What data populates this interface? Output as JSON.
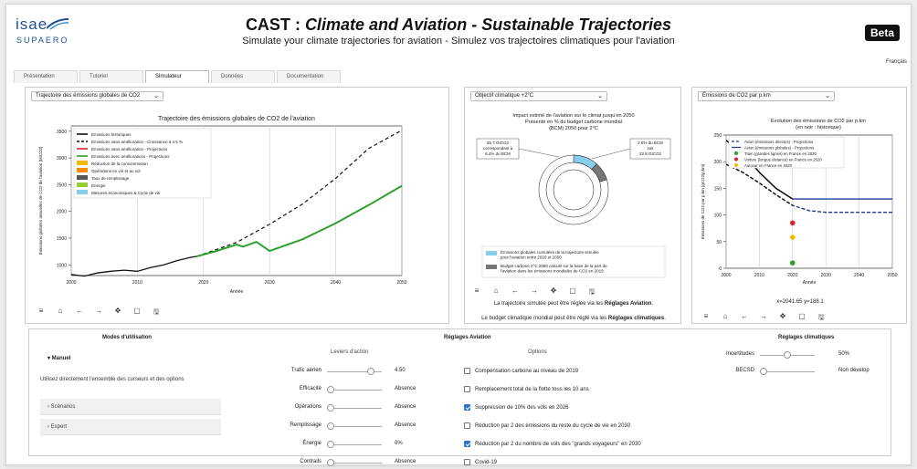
{
  "header": {
    "logo_top": "isae",
    "logo_bottom": "SUPAERO",
    "title_main": "CAST : ",
    "title_italic": "Climate and Aviation - Sustainable Trajectories",
    "subtitle": "Simulate your climate trajectories for aviation - Simulez vos trajectoires climatiques pour l'aviation",
    "beta": "Beta",
    "language": "Français"
  },
  "tabs": [
    {
      "label": "Présentation",
      "active": false
    },
    {
      "label": "Tutoriel",
      "active": false
    },
    {
      "label": "Simulateur",
      "active": true
    },
    {
      "label": "Données",
      "active": false
    },
    {
      "label": "Documentation",
      "active": false
    }
  ],
  "toolbar_icons": [
    "menu-icon",
    "home-icon",
    "back-arrow-icon",
    "forward-arrow-icon",
    "pan-icon",
    "zoom-rect-icon",
    "save-icon"
  ],
  "toolbar_glyphs": [
    "≡",
    "⌂",
    "←",
    "→",
    "✥",
    "▢",
    "🖫"
  ],
  "chart1": {
    "select": "Trajectoire des émissions globales de CO2",
    "legend": [
      {
        "label": "Émissions historiques",
        "color": "#111111",
        "style": "solid"
      },
      {
        "label": "Émissions sans amélioration - Croissance à 4.5 %",
        "color": "#111111",
        "style": "dashed"
      },
      {
        "label": "Émissions sans amélioration - Projections",
        "color": "#d62728",
        "style": "solid"
      },
      {
        "label": "Émissions avec améliorations - Projections",
        "color": "#2ca02c",
        "style": "solid"
      },
      {
        "label": "Réduction de la consommation",
        "color": "#f5b800",
        "style": "patch"
      },
      {
        "label": "Opérations en vol et au sol",
        "color": "#ff8c00",
        "style": "patch"
      },
      {
        "label": "Taux de remplissage",
        "color": "#555555",
        "style": "patch"
      },
      {
        "label": "Énergie",
        "color": "#9acd32",
        "style": "patch"
      },
      {
        "label": "Mesures économiques & Cycle de vie",
        "color": "#87ceeb",
        "style": "patch"
      }
    ],
    "xlabel": "Année",
    "ylabel": "Émissions globales annuelles de CO2 de l'aviation [MtCO2]",
    "yticks": [
      "3500",
      "3000",
      "2500",
      "2000",
      "1500",
      "1000"
    ],
    "xticks": [
      "2000",
      "2010",
      "2020",
      "2030",
      "2040",
      "2050"
    ]
  },
  "chart_data": [
    {
      "type": "line",
      "title": "Trajectoire des émissions globales de CO2 de l'aviation",
      "xlabel": "Année",
      "ylabel": "Émissions globales annuelles de CO2 de l'aviation [MtCO2]",
      "xlim": [
        2000,
        2050
      ],
      "ylim": [
        800,
        3600
      ],
      "series": [
        {
          "name": "Émissions historiques",
          "x": [
            2000,
            2002,
            2004,
            2006,
            2008,
            2010,
            2012,
            2014,
            2016,
            2018,
            2019
          ],
          "values": [
            820,
            790,
            850,
            880,
            900,
            880,
            950,
            1000,
            1080,
            1140,
            1160
          ]
        },
        {
          "name": "Émissions sans amélioration - Croissance à 4.5 %",
          "x": [
            2019,
            2025,
            2030,
            2035,
            2040,
            2045,
            2050
          ],
          "values": [
            1160,
            1420,
            1760,
            2140,
            2620,
            3180,
            3520
          ]
        },
        {
          "name": "Émissions avec améliorations - Projections",
          "x": [
            2019,
            2022,
            2025,
            2026,
            2028,
            2030,
            2035,
            2040,
            2045,
            2050
          ],
          "values": [
            1160,
            1260,
            1380,
            1340,
            1430,
            1260,
            1480,
            1780,
            2120,
            2480
          ]
        }
      ]
    },
    {
      "type": "pie",
      "title": "Impact estimé de l'aviation sur le climat jusqu'en 2050\nPrésenté en % du budget carbone mondial\n(BCM) 2050 pour 2°C",
      "annotations": [
        "55.7 GtCO2\ncorrespondant à\n6.4% du BCM",
        "2.6% du BCM\nsoit\n22.8 GtCO2"
      ],
      "slices": [
        {
          "name": "Aviation",
          "value": 6.4
        },
        {
          "name": "Reste",
          "value": 93.6
        }
      ],
      "legend": [
        {
          "label": "Émissions globales cumulées de la trajectoire simulée pour l'aviation entre 2020 et 2050",
          "color": "#87ceeb"
        },
        {
          "label": "Budget carbone 2°C 2050 calculé sur la base de la part de l'aviation dans les émissions mondiales de CO2 en 2019",
          "color": "#777777"
        }
      ]
    },
    {
      "type": "line",
      "title": "Évolution des émissions de CO2 par p.km\n(en noir : historique)",
      "xlabel": "Année",
      "ylabel": "Émissions de CO2 par p.km [gCO2/p.km]",
      "xlim": [
        2000,
        2050
      ],
      "ylim": [
        0,
        250
      ],
      "series": [
        {
          "name": "Avion (émissions directes) - Projections",
          "x": [
            2000,
            2005,
            2010,
            2015,
            2020,
            2025,
            2030,
            2050
          ],
          "values": [
            195,
            180,
            160,
            138,
            118,
            108,
            105,
            105
          ]
        },
        {
          "name": "Avion (émissions globales) - Projections",
          "x": [
            2000,
            2005,
            2010,
            2015,
            2020,
            2025,
            2050
          ],
          "values": [
            240,
            215,
            180,
            150,
            130,
            130,
            130
          ]
        },
        {
          "name": "Train (grandes lignes) en France en 2020",
          "x": [
            2020
          ],
          "values": [
            10
          ],
          "color": "#2ca02c"
        },
        {
          "name": "Voiture (longue distance) en France en 2020",
          "x": [
            2020
          ],
          "values": [
            85
          ],
          "color": "#d62728"
        },
        {
          "name": "Autocar en France en 2020",
          "x": [
            2020
          ],
          "values": [
            58
          ],
          "color": "#f5b800"
        }
      ]
    }
  ],
  "chart2": {
    "select": "Objectif climatique +2°C",
    "title_lines": [
      "Impact estimé de l'aviation sur le climat jusqu'en 2050",
      "Présenté en % du budget carbone mondial",
      "(BCM) 2050 pour 2°C"
    ],
    "ann_left": [
      "55.7 GtCO2",
      "correspondant à",
      "6.4% du BCM"
    ],
    "ann_right": [
      "2.6% du BCM",
      "soit",
      "22.8 GtCO2"
    ],
    "legend1": [
      "Émissions globales cumulées de la trajectoire simulée",
      "pour l'aviation entre 2020 et 2050"
    ],
    "legend2": [
      "Budget carbone 2°C 2050 calculé sur la base de la part de",
      "l'aviation dans les émissions mondiales de CO2 en 2019"
    ],
    "note1_pre": "La trajectoire simulée peut être réglée via les ",
    "note1_bold": "Réglages Aviation",
    "note1_post": ".",
    "note2_pre": "Le budget climatique mondial peut être réglé via les ",
    "note2_bold": "Réglages climatiques",
    "note2_post": "."
  },
  "chart3": {
    "select": "Émissions de CO2 par p.km",
    "title_lines": [
      "Évolution des émissions de CO2 par p.km",
      "(en noir : historique)"
    ],
    "legend": [
      {
        "label": "Avion (émissions directes) - Projections",
        "color": "#1f3a93",
        "style": "dashed"
      },
      {
        "label": "Avion (émissions globales) - Projections",
        "color": "#1f3a93",
        "style": "solid"
      },
      {
        "label": "Train (grandes lignes) en France en 2020",
        "color": "#2ca02c",
        "style": "dot"
      },
      {
        "label": "Voiture (longue distance) en France en 2020",
        "color": "#d62728",
        "style": "dot"
      },
      {
        "label": "Autocar en France en 2020",
        "color": "#f5b800",
        "style": "dot"
      }
    ],
    "xlabel": "Année",
    "ylabel": "Émissions de CO2 par p.km [gCO2/p.km]",
    "yticks": [
      "250",
      "200",
      "150",
      "100",
      "50",
      "0"
    ],
    "xticks": [
      "2000",
      "2010",
      "2020",
      "2030",
      "2040",
      "2050"
    ],
    "coords": "x=2041.65 y=188.1"
  },
  "modes": {
    "title": "Modes d'utilisation",
    "manual": "▾ Manuel",
    "manual_desc": "Utilisez directement l'ensemble des curseurs et des options",
    "scenarios": "› Scénarios",
    "expert": "› Expert"
  },
  "aviation": {
    "title": "Réglages Aviation",
    "levers_title": "Leviers d'action",
    "options_title": "Options",
    "levers": [
      {
        "label": "Trafic aérien",
        "value": "4.50",
        "pos": 0.85
      },
      {
        "label": "Efficacité",
        "value": "Absence",
        "pos": 0.0
      },
      {
        "label": "Opérations",
        "value": "Absence",
        "pos": 0.0
      },
      {
        "label": "Remplissage",
        "value": "Absence",
        "pos": 0.0
      },
      {
        "label": "Énergie",
        "value": "0%",
        "pos": 0.0
      },
      {
        "label": "Contrails",
        "value": "Absence",
        "pos": 0.0
      }
    ],
    "options": [
      {
        "label": "Compensation carbone au niveau de 2019",
        "checked": false
      },
      {
        "label": "Remplacement total de la flotte tous les 10 ans",
        "checked": false
      },
      {
        "label": "Suppression de 10% des vols en 2026",
        "checked": true
      },
      {
        "label": "Réduction par 2 des émissions du reste du cycle de vie en 2030",
        "checked": false
      },
      {
        "label": "Réduction par 2 du nombre de vols des \"grands voyageurs\" en 2030",
        "checked": true
      },
      {
        "label": "Covid-19",
        "checked": false
      }
    ]
  },
  "climate": {
    "title": "Réglages climatiques",
    "levers": [
      {
        "label": "Incertitudes",
        "value": "50%",
        "pos": 0.5
      },
      {
        "label": "BECSD",
        "value": "Non dévelop",
        "pos": 0.0
      }
    ]
  }
}
